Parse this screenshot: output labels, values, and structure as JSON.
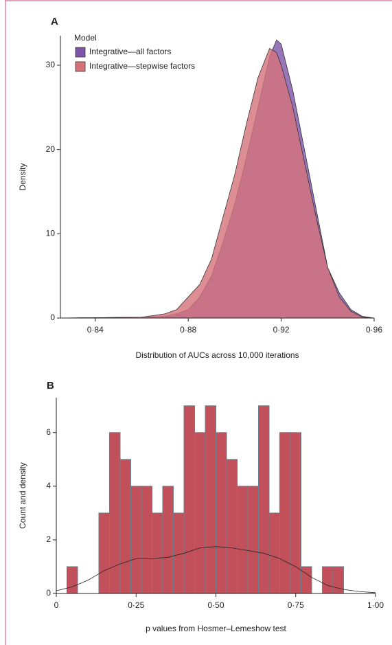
{
  "chart_data": [
    {
      "type": "area",
      "panel": "A",
      "x_label": "Distribution of AUCs across 10,000 iterations",
      "y_label": "Density",
      "legend_title": "Model",
      "x": [
        0.825,
        0.86,
        0.87,
        0.875,
        0.88,
        0.885,
        0.89,
        0.895,
        0.9,
        0.905,
        0.91,
        0.915,
        0.918,
        0.92,
        0.925,
        0.93,
        0.935,
        0.94,
        0.945,
        0.95,
        0.955,
        0.96
      ],
      "series": [
        {
          "name": "Integrative—all factors",
          "color": "#7d55a8",
          "values": [
            0,
            0.1,
            0.2,
            0.5,
            1,
            2.5,
            5,
            9,
            13.5,
            19,
            25,
            31,
            33,
            32.5,
            27,
            20,
            13,
            6,
            3,
            1,
            0.2,
            0
          ]
        },
        {
          "name": "Integrative—stepwise factors",
          "color": "#d4727a",
          "values": [
            0,
            0.1,
            0.5,
            1,
            2.5,
            4,
            7,
            12,
            17,
            23,
            28.5,
            32,
            31.5,
            30,
            25,
            18.5,
            12,
            6,
            2.5,
            0.8,
            0.1,
            0
          ]
        }
      ],
      "xlim": [
        0.825,
        0.96
      ],
      "ylim": [
        0,
        33.5
      ],
      "xticks": [
        {
          "value": 0.84,
          "label": "0·84"
        },
        {
          "value": 0.88,
          "label": "0·88"
        },
        {
          "value": 0.92,
          "label": "0·92"
        },
        {
          "value": 0.96,
          "label": "0·96"
        }
      ],
      "yticks": [
        0,
        10,
        20,
        30
      ]
    },
    {
      "type": "histogram",
      "panel": "B",
      "x_label": "p values from Hosmer–Lemeshow test",
      "y_label": "Count and density",
      "color": "#c2505a",
      "bins": [
        0,
        0.0333,
        0.0667,
        0.1,
        0.1333,
        0.1667,
        0.2,
        0.2333,
        0.2667,
        0.3,
        0.3333,
        0.3667,
        0.4,
        0.4333,
        0.4667,
        0.5,
        0.5333,
        0.5667,
        0.6,
        0.6333,
        0.6667,
        0.7,
        0.7333,
        0.7667,
        0.8,
        0.8333,
        0.8667,
        0.9
      ],
      "values": [
        0,
        1,
        0,
        0,
        3,
        6,
        5,
        4,
        4,
        3,
        4,
        3,
        7,
        6,
        7,
        6,
        5,
        4,
        4,
        7,
        3,
        6,
        6,
        1,
        0,
        1,
        1
      ],
      "curve": {
        "x": [
          0,
          0.05,
          0.1,
          0.15,
          0.2,
          0.25,
          0.3,
          0.35,
          0.4,
          0.45,
          0.5,
          0.55,
          0.6,
          0.65,
          0.7,
          0.75,
          0.8,
          0.85,
          0.9,
          0.95,
          1
        ],
        "values": [
          0.1,
          0.25,
          0.5,
          0.85,
          1.1,
          1.3,
          1.3,
          1.35,
          1.5,
          1.7,
          1.75,
          1.7,
          1.6,
          1.5,
          1.3,
          1.0,
          0.6,
          0.3,
          0.15,
          0.07,
          0.03
        ]
      },
      "xlim": [
        0,
        1
      ],
      "ylim": [
        0,
        7.3
      ],
      "xticks": [
        0,
        {
          "value": 0.25,
          "label": "0·25"
        },
        {
          "value": 0.5,
          "label": "0·50"
        },
        {
          "value": 0.75,
          "label": "0·75"
        },
        {
          "value": 1,
          "label": "1·00"
        }
      ],
      "yticks": [
        0,
        2,
        4,
        6
      ]
    }
  ]
}
